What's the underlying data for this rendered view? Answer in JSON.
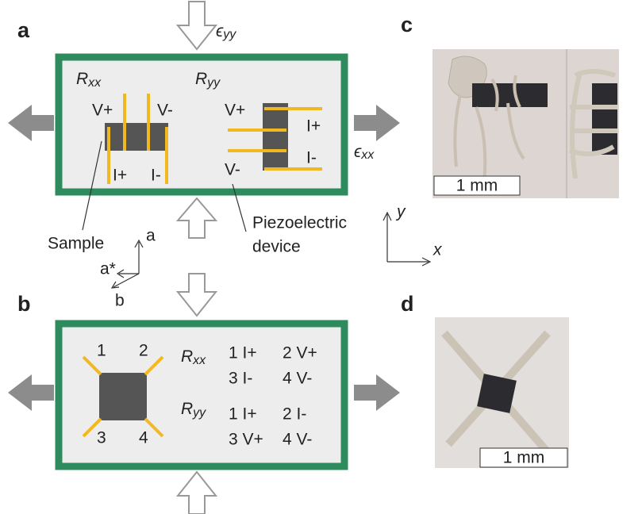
{
  "panels": {
    "a": {
      "label": "a",
      "strain_y": {
        "symbol": "ϵ",
        "subscript": "yy"
      },
      "strain_x": {
        "symbol": "ϵ",
        "subscript": "xx"
      },
      "rxx": {
        "symbol": "R",
        "subscript": "xx",
        "contacts": [
          "V+",
          "V-",
          "I+",
          "I-"
        ]
      },
      "ryy": {
        "symbol": "R",
        "subscript": "yy",
        "contacts": [
          "V+",
          "I+",
          "V-",
          "I-"
        ]
      },
      "sample_label": "Sample",
      "device_label": [
        "Piezoelectric",
        "device"
      ],
      "crystal_axes": [
        "a",
        "a*",
        "b"
      ],
      "coordinate_axes": [
        "y",
        "x"
      ]
    },
    "b": {
      "label": "b",
      "contacts": [
        "1",
        "2",
        "3",
        "4"
      ],
      "rxx": {
        "symbol": "R",
        "subscript": "xx",
        "assignments": [
          "1 I+",
          "2 V+",
          "3 I-",
          "4 V-"
        ]
      },
      "ryy": {
        "symbol": "R",
        "subscript": "yy",
        "assignments": [
          "1 I+",
          "2 I-",
          "3 V+",
          "4 V-"
        ]
      }
    },
    "c": {
      "label": "c",
      "scale_bar": "1 mm"
    },
    "d": {
      "label": "d",
      "scale_bar": "1 mm"
    }
  }
}
